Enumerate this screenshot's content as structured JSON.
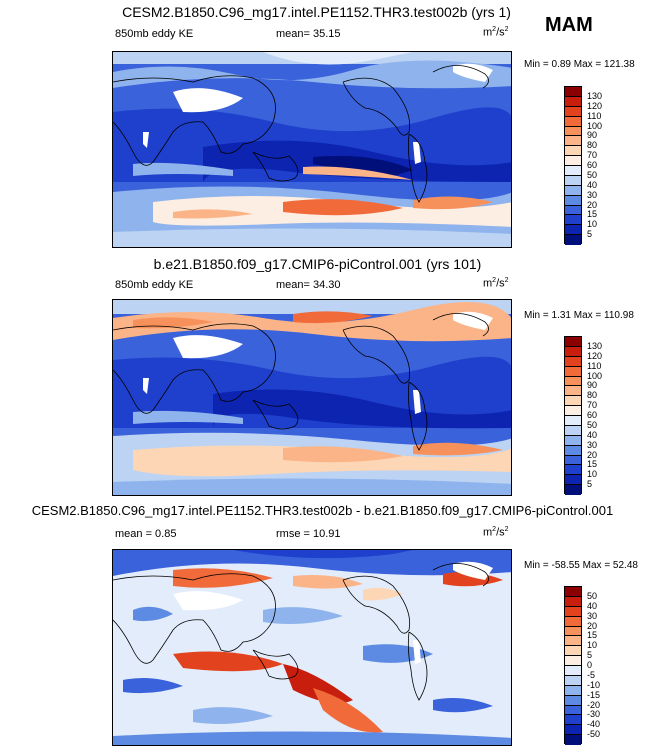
{
  "season": "MAM",
  "panels": [
    {
      "title": "CESM2.B1850.C96_mg17.intel.PE1152.THR3.test002b (yrs 1)",
      "left_label": "850mb eddy KE",
      "center_label": "mean=  35.15",
      "units_base": "m",
      "units_sup1": "2",
      "units_mid": "/s",
      "units_sup2": "2",
      "minmax": "Min =   0.89 Max = 121.38",
      "levels": [
        "130",
        "120",
        "110",
        "100",
        "90",
        "80",
        "70",
        "60",
        "50",
        "40",
        "30",
        "20",
        "15",
        "10",
        "5"
      ],
      "colors": [
        "#8b0000",
        "#c81e0e",
        "#e3421f",
        "#f06a3a",
        "#f7915c",
        "#fbb488",
        "#fdd6b5",
        "#fdeee3",
        "#e2ecfa",
        "#bcd3f3",
        "#8fb3ec",
        "#5d8ae2",
        "#3a62db",
        "#1f40cc",
        "#0c24b0",
        "#000f7a"
      ]
    },
    {
      "title": "b.e21.B1850.f09_g17.CMIP6-piControl.001 (yrs 101)",
      "left_label": "850mb eddy KE",
      "center_label": "mean=  34.30",
      "units_base": "m",
      "units_sup1": "2",
      "units_mid": "/s",
      "units_sup2": "2",
      "minmax": "Min =   1.31 Max = 110.98",
      "levels": [
        "130",
        "120",
        "110",
        "100",
        "90",
        "80",
        "70",
        "60",
        "50",
        "40",
        "30",
        "20",
        "15",
        "10",
        "5"
      ],
      "colors": [
        "#8b0000",
        "#c81e0e",
        "#e3421f",
        "#f06a3a",
        "#f7915c",
        "#fbb488",
        "#fdd6b5",
        "#fdeee3",
        "#e2ecfa",
        "#bcd3f3",
        "#8fb3ec",
        "#5d8ae2",
        "#3a62db",
        "#1f40cc",
        "#0c24b0",
        "#000f7a"
      ]
    },
    {
      "title": "CESM2.B1850.C96_mg17.intel.PE1152.THR3.test002b - b.e21.B1850.f09_g17.CMIP6-piControl.001",
      "left_label": "mean =   0.85",
      "center_label": "rmse =   10.91",
      "units_base": "m",
      "units_sup1": "2",
      "units_mid": "/s",
      "units_sup2": "2",
      "minmax": "Min = -58.55 Max =  52.48",
      "levels": [
        "50",
        "40",
        "30",
        "20",
        "15",
        "10",
        "5",
        "0",
        "-5",
        "-10",
        "-15",
        "-20",
        "-30",
        "-40",
        "-50"
      ],
      "colors": [
        "#8b0000",
        "#c81e0e",
        "#e3421f",
        "#f06a3a",
        "#f7915c",
        "#fbb488",
        "#fdd6b5",
        "#fdeee3",
        "#e2ecfa",
        "#bcd3f3",
        "#8fb3ec",
        "#5d8ae2",
        "#3a62db",
        "#1f40cc",
        "#0c24b0",
        "#000f7a"
      ]
    }
  ]
}
